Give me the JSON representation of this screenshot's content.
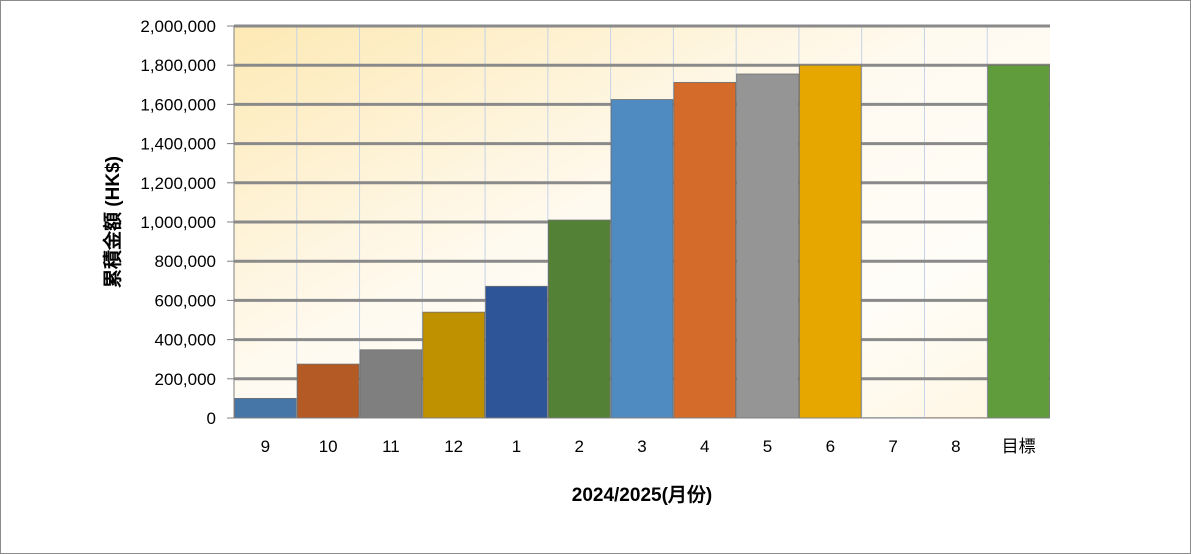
{
  "chart_data": {
    "type": "bar",
    "title": "",
    "xlabel": "2024/2025(月份)",
    "ylabel": "累積金額 (HK$)",
    "categories": [
      "9",
      "10",
      "11",
      "12",
      "1",
      "2",
      "3",
      "4",
      "5",
      "6",
      "7",
      "8",
      "目標"
    ],
    "values": [
      100000,
      275000,
      348000,
      540000,
      672000,
      1010000,
      1625000,
      1712000,
      1755000,
      1800000,
      0,
      0,
      1800000
    ],
    "colors": [
      "#4676a8",
      "#b45a24",
      "#7f7f7f",
      "#bf9000",
      "#2e5597",
      "#538135",
      "#4f8bc0",
      "#d46b2a",
      "#959595",
      "#e6a800",
      "#4676a8",
      "#b45a24",
      "#609b3c"
    ],
    "ylim": [
      0,
      2000000
    ],
    "yticks": [
      0,
      200000,
      400000,
      600000,
      800000,
      1000000,
      1200000,
      1400000,
      1600000,
      1800000,
      2000000
    ],
    "ytick_labels": [
      "0",
      "200,000",
      "400,000",
      "600,000",
      "800,000",
      "1,000,000",
      "1,200,000",
      "1,400,000",
      "1,600,000",
      "1,800,000",
      "2,000,000"
    ],
    "grid": true,
    "legend": "none"
  }
}
